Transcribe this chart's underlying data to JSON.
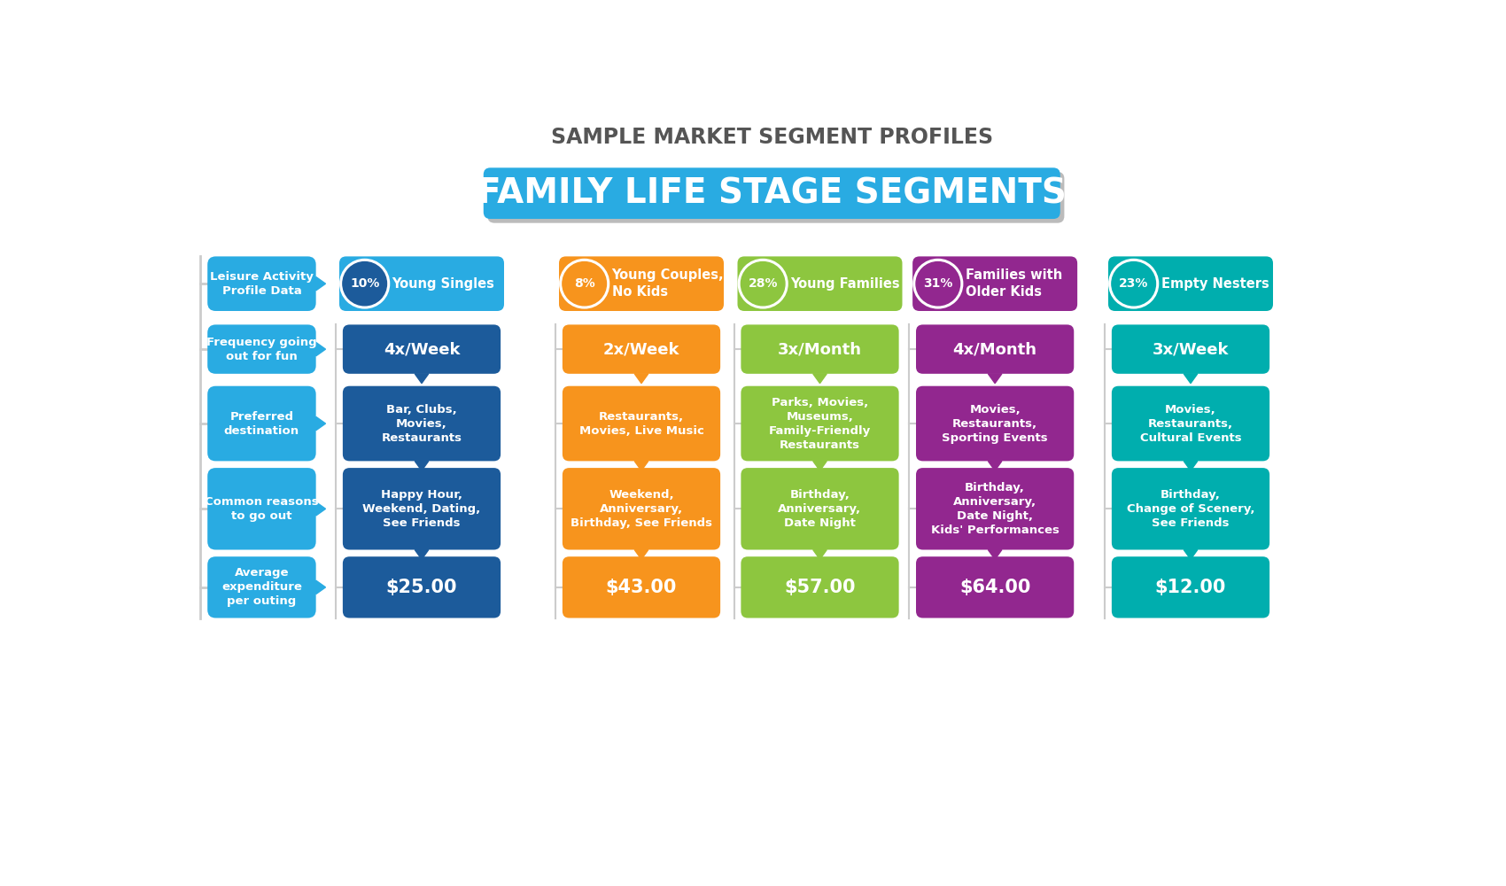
{
  "title": "SAMPLE MARKET SEGMENT PROFILES",
  "subtitle": "FAMILY LIFE STAGE SEGMENTS",
  "subtitle_bg": "#29ABE2",
  "subtitle_color": "#FFFFFF",
  "left_col_color": "#29ABE2",
  "row_labels": [
    "Leisure Activity\nProfile Data",
    "Frequency going\nout for fun",
    "Preferred\ndestination",
    "Common reasons\nto go out",
    "Average\nexpenditure\nper outing"
  ],
  "segments": [
    {
      "name": "Young Singles",
      "pct": "10%",
      "color": "#1C5B9B",
      "header_bg": "#29ABE2",
      "text_color": "#FFFFFF",
      "frequency": "4x/Week",
      "destination": "Bar, Clubs,\nMovies,\nRestaurants",
      "reasons": "Happy Hour,\nWeekend, Dating,\nSee Friends",
      "expenditure": "$25.00"
    },
    {
      "name": "Young Couples,\nNo Kids",
      "pct": "8%",
      "color": "#F7941D",
      "header_bg": "#F7941D",
      "text_color": "#FFFFFF",
      "frequency": "2x/Week",
      "destination": "Restaurants,\nMovies, Live Music",
      "reasons": "Weekend,\nAnniversary,\nBirthday, See Friends",
      "expenditure": "$43.00"
    },
    {
      "name": "Young Families",
      "pct": "28%",
      "color": "#8DC63F",
      "header_bg": "#8DC63F",
      "text_color": "#FFFFFF",
      "frequency": "3x/Month",
      "destination": "Parks, Movies,\nMuseums,\nFamily-Friendly\nRestaurants",
      "reasons": "Birthday,\nAnniversary,\nDate Night",
      "expenditure": "$57.00"
    },
    {
      "name": "Families with\nOlder Kids",
      "pct": "31%",
      "color": "#92278F",
      "header_bg": "#92278F",
      "text_color": "#FFFFFF",
      "frequency": "4x/Month",
      "destination": "Movies,\nRestaurants,\nSporting Events",
      "reasons": "Birthday,\nAnniversary,\nDate Night,\nKids' Performances",
      "expenditure": "$64.00"
    },
    {
      "name": "Empty Nesters",
      "pct": "23%",
      "color": "#00AEAE",
      "header_bg": "#00AEAE",
      "text_color": "#FFFFFF",
      "frequency": "3x/Week",
      "destination": "Movies,\nRestaurants,\nCultural Events",
      "reasons": "Birthday,\nChange of Scenery,\nSee Friends",
      "expenditure": "$12.00"
    }
  ],
  "background_color": "#FFFFFF"
}
